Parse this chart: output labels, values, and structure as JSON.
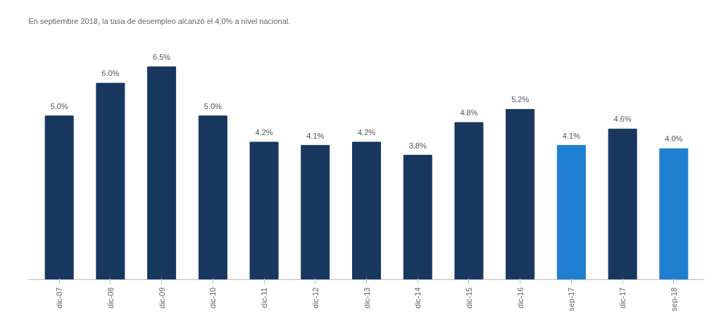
{
  "chart_data": {
    "type": "bar",
    "title": "En septiembre 2018, la tasa de desempleo alcanzó el 4,0% a nivel nacional.",
    "categories": [
      "dic-07",
      "dic-08",
      "dic-09",
      "dic-10",
      "dic-11",
      "dic-12",
      "dic-13",
      "dic-14",
      "dic-15",
      "dic-16",
      "sep-17",
      "dic-17",
      "sep-18"
    ],
    "values": [
      5.0,
      6.0,
      6.5,
      5.0,
      4.2,
      4.1,
      4.2,
      3.8,
      4.8,
      5.2,
      4.1,
      4.6,
      4.0
    ],
    "colors": [
      "#17375e",
      "#17375e",
      "#17375e",
      "#17375e",
      "#17375e",
      "#17375e",
      "#17375e",
      "#17375e",
      "#17375e",
      "#17375e",
      "#1f7fd0",
      "#17375e",
      "#1f7fd0"
    ],
    "value_labels": [
      "5.0%",
      "6.0%",
      "6.5%",
      "5.0%",
      "4.2%",
      "4.1%",
      "4.2%",
      "3.8%",
      "4.8%",
      "5.2%",
      "4.1%",
      "4.6%",
      "4.0%"
    ],
    "grid": false
  }
}
